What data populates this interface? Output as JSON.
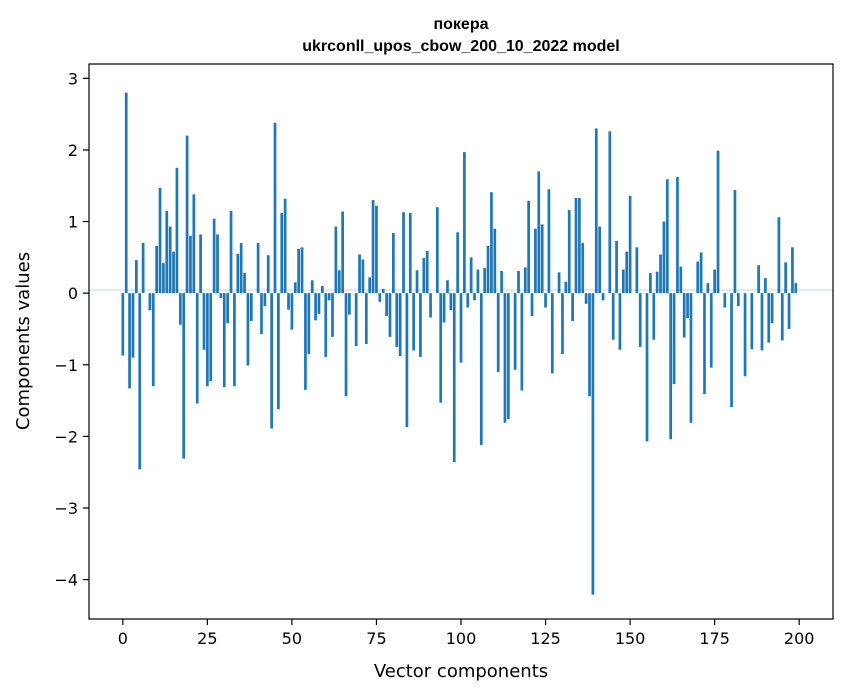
{
  "chart_data": {
    "type": "bar",
    "title": "покера",
    "subtitle": "ukrconll_upos_cbow_200_10_2022 model",
    "xlabel": "Vector components",
    "ylabel": "Components values",
    "xlim": [
      -10,
      210
    ],
    "ylim": [
      -4.55,
      3.2
    ],
    "xticks": [
      0,
      25,
      50,
      75,
      100,
      125,
      150,
      175,
      200
    ],
    "yticks": [
      3,
      2,
      1,
      0,
      -1,
      -2,
      -3,
      -4
    ],
    "xtick_labels": [
      "0",
      "25",
      "50",
      "75",
      "100",
      "125",
      "150",
      "175",
      "200"
    ],
    "ytick_labels": [
      "3",
      "2",
      "1",
      "0",
      "−1",
      "−2",
      "−3",
      "−4"
    ],
    "grid": false,
    "bar_color": "#1f77b4",
    "values": [
      -0.87,
      2.8,
      -1.33,
      -0.9,
      0.46,
      -2.46,
      0.7,
      0.0,
      -0.24,
      -1.3,
      0.66,
      1.47,
      0.42,
      1.15,
      0.93,
      0.58,
      1.75,
      -0.44,
      -2.31,
      2.2,
      0.8,
      1.38,
      -1.54,
      0.82,
      -0.79,
      -1.3,
      -1.23,
      1.04,
      0.82,
      -0.07,
      -1.31,
      -0.42,
      1.15,
      -1.3,
      0.55,
      0.7,
      0.28,
      -1.01,
      -0.39,
      0.0,
      0.7,
      -0.57,
      -0.18,
      0.53,
      -1.89,
      2.38,
      -1.62,
      1.12,
      1.32,
      -0.23,
      -0.51,
      0.15,
      0.62,
      0.64,
      -1.35,
      -0.85,
      0.18,
      -0.38,
      -0.29,
      0.1,
      -0.89,
      -0.1,
      -0.61,
      0.93,
      0.32,
      1.14,
      -1.44,
      -0.3,
      0.0,
      -0.74,
      0.54,
      0.47,
      -0.71,
      0.22,
      1.3,
      1.22,
      -0.12,
      0.06,
      -0.32,
      -0.61,
      0.84,
      -0.75,
      -0.88,
      1.13,
      -1.87,
      1.12,
      -0.8,
      0.32,
      -0.89,
      0.49,
      0.59,
      -0.34,
      0.0,
      1.2,
      -1.53,
      -0.41,
      0.18,
      -0.24,
      -2.36,
      0.85,
      -0.97,
      1.97,
      -0.2,
      0.5,
      -0.1,
      0.33,
      -2.12,
      0.35,
      0.66,
      1.41,
      0.9,
      -1.1,
      0.31,
      -1.81,
      -1.76,
      0.0,
      -1.07,
      0.31,
      -1.36,
      0.36,
      1.29,
      -0.32,
      0.9,
      1.7,
      0.96,
      -0.2,
      1.45,
      -1.12,
      0.0,
      0.29,
      -0.85,
      0.16,
      1.16,
      -0.39,
      1.33,
      1.33,
      0.7,
      -0.15,
      -1.44,
      -4.21,
      2.3,
      0.93,
      -0.1,
      0.0,
      2.26,
      -0.65,
      0.73,
      -0.79,
      0.33,
      0.58,
      1.36,
      0.0,
      0.64,
      -0.75,
      0.0,
      -2.07,
      0.28,
      -0.65,
      0.3,
      0.54,
      1.0,
      1.59,
      -2.04,
      -1.27,
      1.62,
      0.37,
      -0.62,
      -0.35,
      -1.81,
      0.0,
      0.44,
      0.57,
      -1.41,
      0.14,
      -1.04,
      0.33,
      1.99,
      0.0,
      -0.2,
      0.0,
      -1.59,
      1.44,
      -0.18,
      0.0,
      -1.16,
      0.0,
      -0.78,
      0.0,
      0.39,
      -0.8,
      0.21,
      -0.69,
      -0.42,
      0.0,
      1.06,
      -0.66,
      0.43,
      -0.5,
      0.64,
      0.14
    ]
  }
}
